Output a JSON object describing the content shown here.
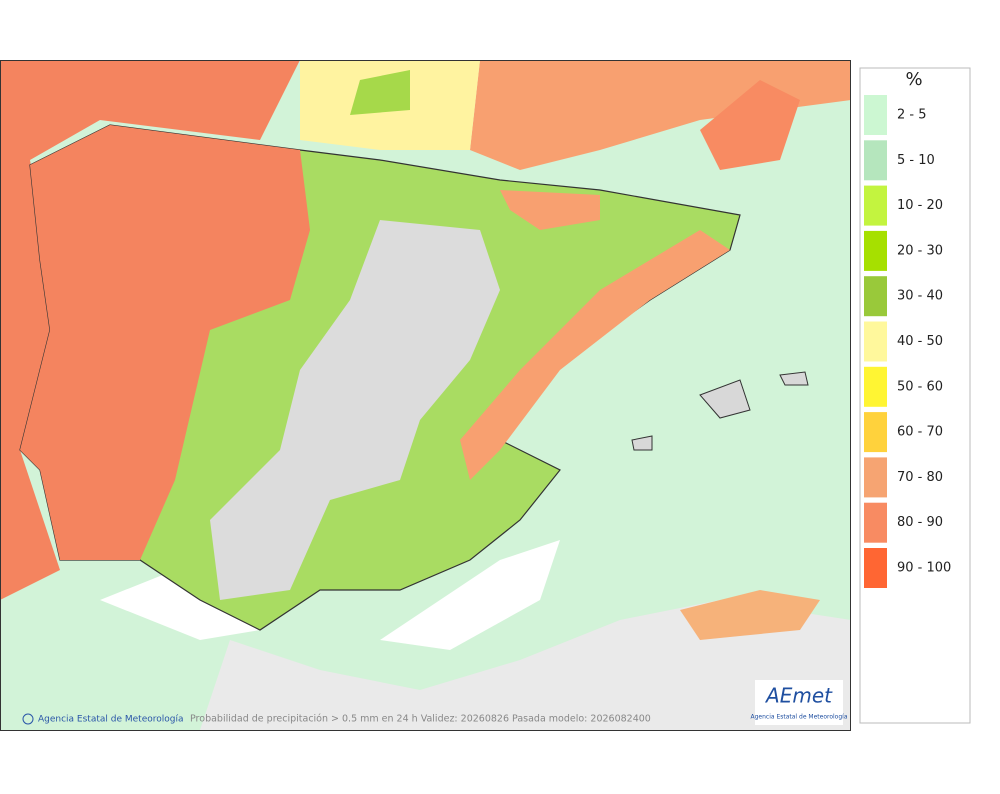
{
  "map": {
    "footer": {
      "agency": "Agencia Estatal de Meteorología",
      "caption": "Probabilidad de precipitación > 0.5 mm en 24 h Validez: 20260826 Pasada modelo: 2026082400"
    },
    "logo": {
      "name": "AEmet",
      "subtitle": "Agencia Estatal de Meteorología"
    }
  },
  "legend": {
    "title": "%",
    "items": [
      {
        "label": "2 - 5",
        "color": "#ccf7d2"
      },
      {
        "label": "5 - 10",
        "color": "#b5e6bd"
      },
      {
        "label": "10 - 20",
        "color": "#c3f43f"
      },
      {
        "label": "20 - 30",
        "color": "#a6e000"
      },
      {
        "label": "30 - 40",
        "color": "#99c93a"
      },
      {
        "label": "40 - 50",
        "color": "#fff89c"
      },
      {
        "label": "50 - 60",
        "color": "#fff533"
      },
      {
        "label": "60 - 70",
        "color": "#ffd23c"
      },
      {
        "label": "70 - 80",
        "color": "#f6a472"
      },
      {
        "label": "80 - 90",
        "color": "#f88b62"
      },
      {
        "label": "90 - 100",
        "color": "#ff6633"
      }
    ]
  }
}
